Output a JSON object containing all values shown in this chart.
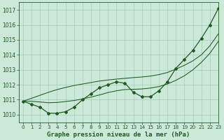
{
  "title": "Graphe pression niveau de la mer (hPa)",
  "xlim": [
    -0.5,
    23
  ],
  "ylim": [
    1009.5,
    1017.5
  ],
  "yticks": [
    1010,
    1011,
    1012,
    1013,
    1014,
    1015,
    1016,
    1017
  ],
  "xticks": [
    0,
    1,
    2,
    3,
    4,
    5,
    6,
    7,
    8,
    9,
    10,
    11,
    12,
    13,
    14,
    15,
    16,
    17,
    18,
    19,
    20,
    21,
    22,
    23
  ],
  "bg_color": "#cce8d8",
  "grid_color": "#aaccbb",
  "line_color": "#1e5c1e",
  "marker_color": "#1e5c1e",
  "series_main": [
    1010.9,
    1010.7,
    1010.5,
    1010.1,
    1010.1,
    1010.2,
    1010.5,
    1011.0,
    1011.4,
    1011.8,
    1012.0,
    1012.2,
    1012.1,
    1011.5,
    1011.2,
    1011.2,
    1011.6,
    1012.2,
    1013.1,
    1013.7,
    1014.3,
    1015.1,
    1016.0,
    1017.1
  ],
  "series_smooth": [
    1010.9,
    1010.9,
    1010.85,
    1010.8,
    1010.82,
    1010.88,
    1010.95,
    1011.05,
    1011.18,
    1011.32,
    1011.48,
    1011.6,
    1011.68,
    1011.7,
    1011.72,
    1011.78,
    1011.88,
    1012.05,
    1012.3,
    1012.6,
    1013.0,
    1013.5,
    1014.1,
    1014.9
  ],
  "series_linear": [
    1010.9,
    1011.1,
    1011.3,
    1011.5,
    1011.68,
    1011.82,
    1011.95,
    1012.05,
    1012.15,
    1012.25,
    1012.32,
    1012.38,
    1012.43,
    1012.48,
    1012.52,
    1012.58,
    1012.68,
    1012.82,
    1013.05,
    1013.3,
    1013.6,
    1014.0,
    1014.6,
    1015.4
  ]
}
